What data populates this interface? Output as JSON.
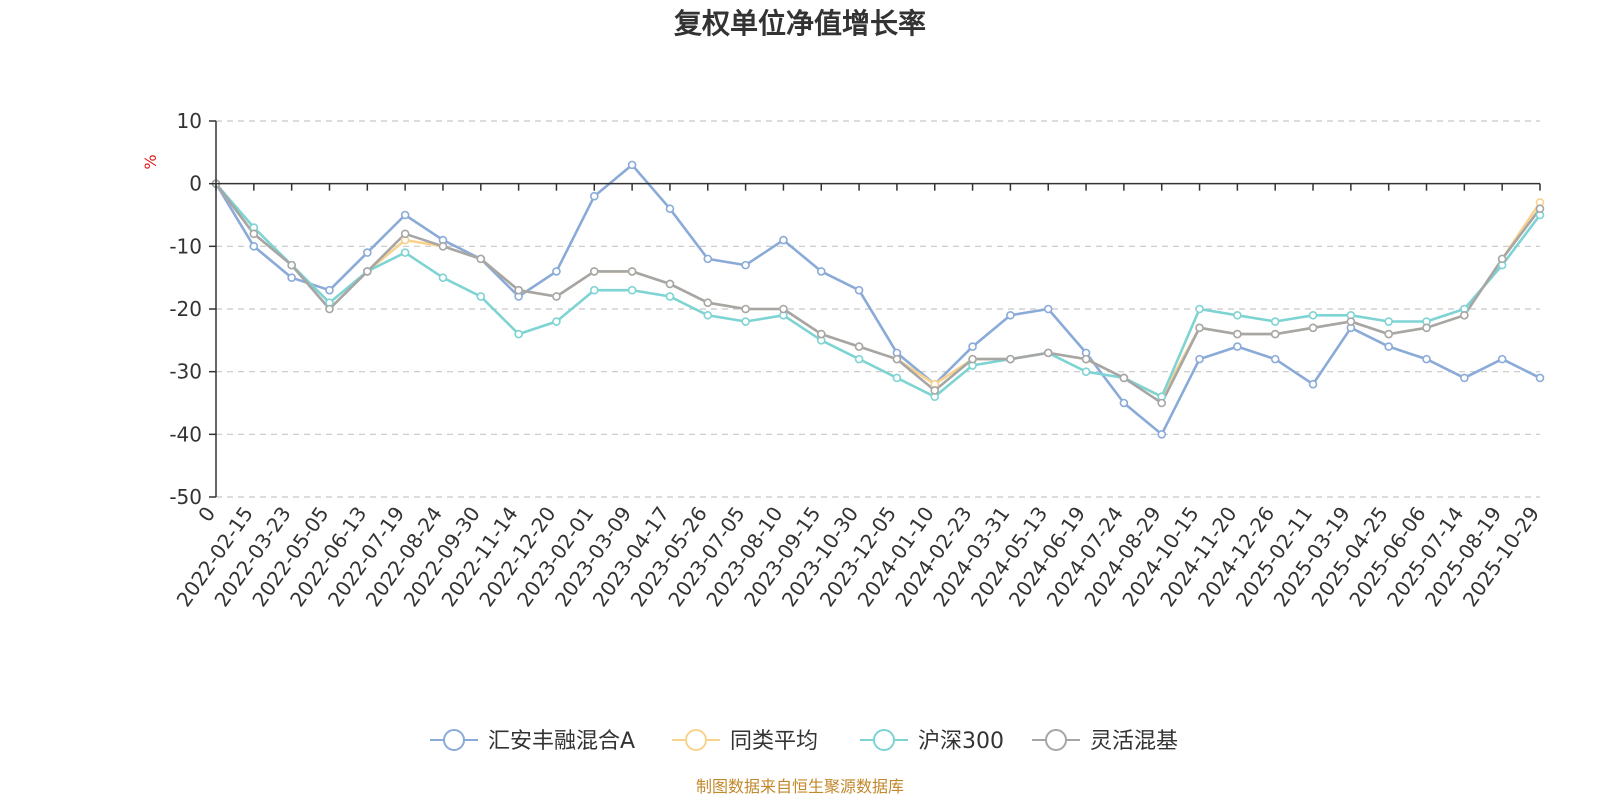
{
  "chart_data": {
    "type": "line",
    "title": "复权单位净值增长率",
    "ylabel": "%",
    "ylim": [
      -50,
      10
    ],
    "yticks": [
      10,
      0,
      -10,
      -20,
      -30,
      -40,
      -50
    ],
    "x_tick_labels": [
      "0",
      "2022-02-15",
      "2022-03-23",
      "2022-05-05",
      "2022-06-13",
      "2022-07-19",
      "2022-08-24",
      "2022-09-30",
      "2022-11-14",
      "2022-12-20",
      "2023-02-01",
      "2023-03-09",
      "2023-04-17",
      "2023-05-26",
      "2023-07-05",
      "2023-08-10",
      "2023-09-15",
      "2023-10-30",
      "2023-12-05",
      "2024-01-10",
      "2024-02-23",
      "2024-03-31",
      "2024-05-13",
      "2024-06-19",
      "2024-07-24",
      "2024-08-29",
      "2024-10-15",
      "2024-11-20",
      "2024-12-26",
      "2025-02-11",
      "2025-03-19",
      "2025-04-25",
      "2025-06-06",
      "2025-07-14",
      "2025-08-19",
      "2025-10-29"
    ],
    "x": [
      0,
      1,
      2,
      3,
      4,
      5,
      6,
      7,
      8,
      9,
      10,
      11,
      12,
      13,
      14,
      15,
      16,
      17,
      18,
      19,
      20,
      21,
      22,
      23,
      24,
      25,
      26,
      27,
      28,
      29,
      30,
      31,
      32,
      33,
      34,
      35
    ],
    "series": [
      {
        "name": "汇安丰融混合A",
        "color": "#8aaad8",
        "values": [
          0,
          -10,
          -15,
          -17,
          -11,
          -5,
          -9,
          -12,
          -18,
          -14,
          -2,
          3,
          -4,
          -12,
          -13,
          -9,
          -14,
          -17,
          -27,
          -32,
          -26,
          -21,
          -20,
          -27,
          -35,
          -40,
          -28,
          -26,
          -28,
          -32,
          -23,
          -26,
          -28,
          -31,
          -28,
          -31
        ]
      },
      {
        "name": "同类平均",
        "color": "#f9d38e",
        "values": [
          0,
          -8,
          -13,
          -20,
          -14,
          -9,
          -10,
          -12,
          -17,
          -18,
          -14,
          -14,
          -16,
          -19,
          -20,
          -20,
          -24,
          -26,
          -28,
          -32,
          -28,
          -28,
          -27,
          -28,
          -31,
          -34,
          -23,
          -24,
          -24,
          -23,
          -22,
          -24,
          -23,
          -21,
          -12,
          -3
        ]
      },
      {
        "name": "沪深300",
        "color": "#7ed3d3",
        "values": [
          0,
          -7,
          -13,
          -19,
          -14,
          -11,
          -15,
          -18,
          -24,
          -22,
          -17,
          -17,
          -18,
          -21,
          -22,
          -21,
          -25,
          -28,
          -31,
          -34,
          -29,
          -28,
          -27,
          -30,
          -31,
          -34,
          -20,
          -21,
          -22,
          -21,
          -21,
          -22,
          -22,
          -20,
          -13,
          -5
        ]
      },
      {
        "name": "灵活混基",
        "color": "#a6a6a6",
        "values": [
          0,
          -8,
          -13,
          -20,
          -14,
          -8,
          -10,
          -12,
          -17,
          -18,
          -14,
          -14,
          -16,
          -19,
          -20,
          -20,
          -24,
          -26,
          -28,
          -33,
          -28,
          -28,
          -27,
          -28,
          -31,
          -35,
          -23,
          -24,
          -24,
          -23,
          -22,
          -24,
          -23,
          -21,
          -12,
          -4
        ]
      }
    ],
    "legend_position": "bottom-center",
    "grid": true,
    "source_note": "制图数据来自恒生聚源数据库"
  }
}
